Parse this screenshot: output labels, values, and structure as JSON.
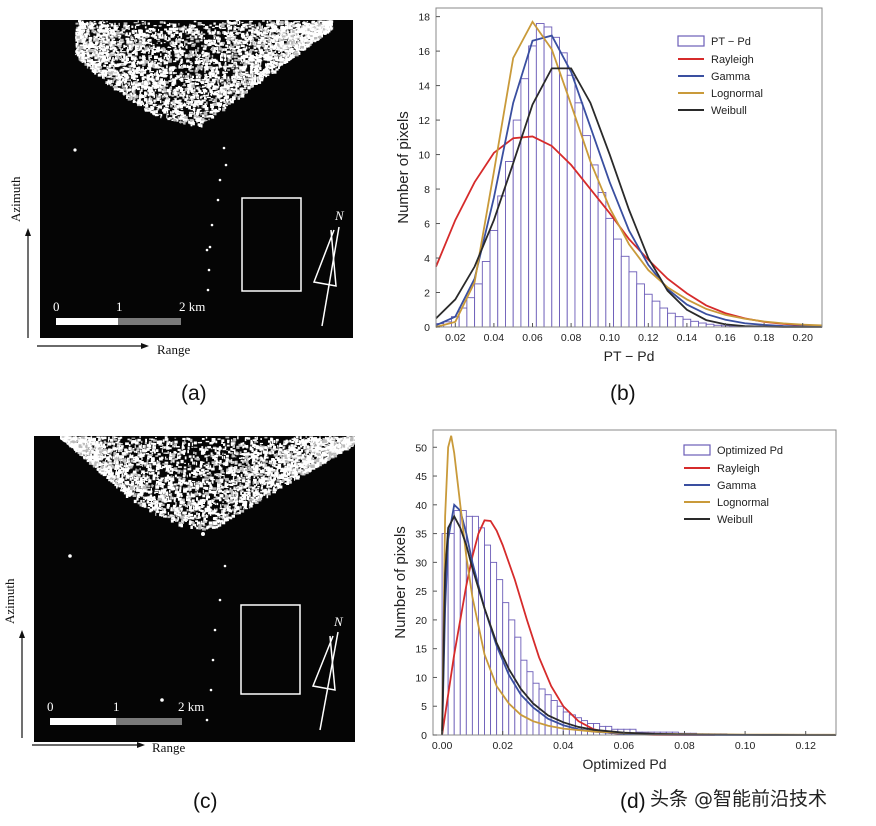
{
  "panels": {
    "a": {
      "label": "(a)",
      "azimuth_label": "Azimuth",
      "range_label": "Range",
      "north_label": "N",
      "scale_ticks": [
        "0",
        "1",
        "2 km"
      ]
    },
    "c": {
      "label": "(c)",
      "azimuth_label": "Azimuth",
      "range_label": "Range",
      "north_label": "N",
      "scale_ticks": [
        "0",
        "1",
        "2 km"
      ]
    },
    "b": {
      "label": "(b)"
    },
    "d": {
      "label": "(d)"
    }
  },
  "chart_data": [
    {
      "panel": "b",
      "type": "bar",
      "xlabel": "PT − Pd",
      "ylabel": "Number of pixels",
      "xlim": [
        0.01,
        0.21
      ],
      "ylim": [
        0,
        18.5
      ],
      "x_ticks": [
        0.02,
        0.04,
        0.06,
        0.08,
        0.1,
        0.12,
        0.14,
        0.16,
        0.18,
        0.2
      ],
      "x_tick_labels": [
        "0.02",
        "0.04",
        "0.06",
        "0.08",
        "0.10",
        "0.12",
        "0.14",
        "0.16",
        "0.18",
        "0.20"
      ],
      "y_ticks": [
        0,
        2,
        4,
        6,
        8,
        10,
        12,
        14,
        16,
        18
      ],
      "legend_position": "top-right",
      "histogram": {
        "name": "PT − Pd",
        "bin_start": 0.01,
        "bin_width": 0.004,
        "values": [
          0.2,
          0.3,
          0.6,
          1.1,
          1.7,
          2.5,
          3.8,
          5.6,
          7.6,
          9.6,
          12.0,
          14.4,
          16.3,
          17.6,
          17.4,
          16.8,
          15.9,
          14.6,
          13.0,
          11.1,
          9.4,
          7.8,
          6.3,
          5.1,
          4.1,
          3.2,
          2.5,
          1.9,
          1.5,
          1.1,
          0.8,
          0.6,
          0.45,
          0.33,
          0.23,
          0.16,
          0.1,
          0.07,
          0.05,
          0.03,
          0.02,
          0.01,
          0.01,
          0.0,
          0.0,
          0.0,
          0.0,
          0.0,
          0.0,
          0.0
        ]
      },
      "series": [
        {
          "name": "Rayleigh",
          "color": "#d62b2b",
          "x": [
            0.01,
            0.02,
            0.03,
            0.04,
            0.05,
            0.06,
            0.07,
            0.08,
            0.09,
            0.1,
            0.11,
            0.12,
            0.13,
            0.14,
            0.15,
            0.16,
            0.17,
            0.18,
            0.19,
            0.2,
            0.21
          ],
          "y": [
            3.5,
            6.2,
            8.4,
            10.1,
            10.95,
            11.05,
            10.5,
            9.4,
            8.0,
            6.6,
            5.1,
            3.9,
            2.8,
            1.95,
            1.25,
            0.8,
            0.5,
            0.3,
            0.18,
            0.1,
            0.05
          ]
        },
        {
          "name": "Gamma",
          "color": "#3a4fa0",
          "x": [
            0.01,
            0.02,
            0.03,
            0.04,
            0.05,
            0.06,
            0.07,
            0.08,
            0.09,
            0.1,
            0.11,
            0.12,
            0.13,
            0.14,
            0.15,
            0.16,
            0.17,
            0.18,
            0.19,
            0.2,
            0.21
          ],
          "y": [
            0.1,
            0.6,
            2.8,
            7.5,
            13.0,
            16.6,
            16.9,
            14.8,
            11.6,
            8.4,
            5.6,
            3.6,
            2.2,
            1.3,
            0.75,
            0.42,
            0.22,
            0.12,
            0.06,
            0.03,
            0.02
          ]
        },
        {
          "name": "Lognormal",
          "color": "#c99a3a",
          "x": [
            0.01,
            0.02,
            0.03,
            0.04,
            0.05,
            0.06,
            0.07,
            0.08,
            0.09,
            0.1,
            0.11,
            0.12,
            0.13,
            0.14,
            0.15,
            0.16,
            0.17,
            0.18,
            0.19,
            0.2,
            0.21
          ],
          "y": [
            0.0,
            0.3,
            2.6,
            9.0,
            15.6,
            17.7,
            16.1,
            12.9,
            9.6,
            6.9,
            4.8,
            3.3,
            2.3,
            1.6,
            1.05,
            0.7,
            0.48,
            0.32,
            0.21,
            0.14,
            0.09
          ]
        },
        {
          "name": "Weibull",
          "color": "#2a2a2a",
          "x": [
            0.01,
            0.02,
            0.03,
            0.04,
            0.05,
            0.06,
            0.07,
            0.08,
            0.09,
            0.1,
            0.11,
            0.12,
            0.13,
            0.14,
            0.15,
            0.16,
            0.17,
            0.18,
            0.19,
            0.2,
            0.21
          ],
          "y": [
            0.5,
            1.6,
            3.5,
            6.2,
            9.5,
            12.9,
            15.0,
            15.0,
            13.0,
            10.0,
            6.8,
            4.0,
            2.1,
            1.0,
            0.4,
            0.15,
            0.05,
            0.02,
            0.0,
            0.0,
            0.0
          ]
        }
      ]
    },
    {
      "panel": "d",
      "type": "bar",
      "xlabel": "Optimized Pd",
      "ylabel": "Number of pixels",
      "xlim": [
        -0.003,
        0.13
      ],
      "ylim": [
        0,
        53
      ],
      "x_ticks": [
        0.0,
        0.02,
        0.04,
        0.06,
        0.08,
        0.1,
        0.12
      ],
      "x_tick_labels": [
        "0.00",
        "0.02",
        "0.04",
        "0.06",
        "0.08",
        "0.10",
        "0.12"
      ],
      "y_ticks": [
        0,
        5,
        10,
        15,
        20,
        25,
        30,
        35,
        40,
        45,
        50
      ],
      "legend_position": "top-right",
      "histogram": {
        "name": "Optimized Pd",
        "bin_start": 0.0,
        "bin_width": 0.002,
        "values": [
          35,
          35,
          39,
          39,
          38,
          38,
          36,
          33,
          30,
          27,
          23,
          20,
          17,
          13,
          11,
          9,
          8,
          7,
          6,
          5,
          4,
          3.5,
          3,
          2.5,
          2,
          2,
          1.5,
          1.5,
          1,
          1,
          1,
          1,
          0.5,
          0.5,
          0.5,
          0.5,
          0.5,
          0.5,
          0.5,
          0.3,
          0.3,
          0.3,
          0.2,
          0.2,
          0.2,
          0.2,
          0.2,
          0.1,
          0.1,
          0.1,
          0.1,
          0.1,
          0.1,
          0.1,
          0.1,
          0.1,
          0.1,
          0.1,
          0.1,
          0.1,
          0.1,
          0.1,
          0.1,
          0.1
        ]
      },
      "series": [
        {
          "name": "Rayleigh",
          "color": "#d62b2b",
          "x": [
            0.0,
            0.002,
            0.004,
            0.006,
            0.008,
            0.01,
            0.012,
            0.014,
            0.016,
            0.018,
            0.02,
            0.024,
            0.028,
            0.032,
            0.036,
            0.04,
            0.045,
            0.05,
            0.055,
            0.06,
            0.07,
            0.08,
            0.09
          ],
          "y": [
            0,
            7,
            14,
            20,
            26,
            31,
            35,
            37.3,
            37.2,
            35.5,
            33,
            27,
            20,
            13.5,
            8.5,
            5,
            2.4,
            1,
            0.4,
            0.15,
            0.02,
            0,
            0
          ]
        },
        {
          "name": "Gamma",
          "color": "#3a4fa0",
          "x": [
            0.0,
            0.001,
            0.002,
            0.004,
            0.006,
            0.008,
            0.01,
            0.014,
            0.018,
            0.022,
            0.026,
            0.03,
            0.035,
            0.04,
            0.045,
            0.05,
            0.06,
            0.07,
            0.08,
            0.09,
            0.1,
            0.11,
            0.12,
            0.13
          ],
          "y": [
            0,
            22,
            34,
            40,
            39,
            35,
            30,
            22,
            15.5,
            10.5,
            7,
            4.8,
            2.8,
            1.7,
            1.0,
            0.6,
            0.2,
            0.08,
            0.03,
            0.01,
            0,
            0,
            0,
            0
          ]
        },
        {
          "name": "Lognormal",
          "color": "#c99a3a",
          "x": [
            0.0,
            0.001,
            0.002,
            0.003,
            0.004,
            0.006,
            0.008,
            0.01,
            0.014,
            0.018,
            0.022,
            0.026,
            0.03,
            0.035,
            0.04,
            0.05,
            0.06,
            0.07,
            0.08,
            0.09,
            0.1,
            0.11,
            0.12,
            0.13
          ],
          "y": [
            0,
            38,
            50,
            52,
            49,
            40,
            31,
            24,
            14,
            8.5,
            5.5,
            3.5,
            2.4,
            1.6,
            1.1,
            0.6,
            0.35,
            0.22,
            0.15,
            0.1,
            0.07,
            0.05,
            0.04,
            0.03
          ]
        },
        {
          "name": "Weibull",
          "color": "#2a2a2a",
          "x": [
            0.0,
            0.001,
            0.002,
            0.004,
            0.006,
            0.008,
            0.01,
            0.014,
            0.018,
            0.022,
            0.026,
            0.03,
            0.035,
            0.04,
            0.045,
            0.05,
            0.06,
            0.07,
            0.08,
            0.09,
            0.1,
            0.11,
            0.12,
            0.13
          ],
          "y": [
            0,
            28,
            36,
            38,
            36,
            33,
            29,
            22,
            16,
            11.5,
            8,
            5.5,
            3.4,
            2.2,
            1.4,
            0.9,
            0.4,
            0.18,
            0.08,
            0.04,
            0.02,
            0.01,
            0,
            0
          ]
        }
      ]
    }
  ],
  "watermark": "头条 @智能前沿技术"
}
